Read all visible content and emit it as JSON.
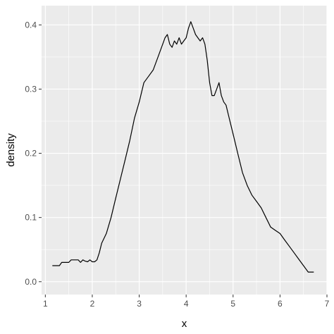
{
  "chart_data": {
    "type": "line",
    "title": "",
    "xlabel": "x",
    "ylabel": "density",
    "xlim": [
      0.92,
      7.0
    ],
    "ylim": [
      -0.02,
      0.43
    ],
    "x_ticks": [
      1,
      2,
      3,
      4,
      5,
      6,
      7
    ],
    "y_ticks": [
      0.0,
      0.1,
      0.2,
      0.3,
      0.4
    ],
    "y_tick_labels": [
      "0.0",
      "0.1",
      "0.2",
      "0.3",
      "0.4"
    ],
    "grid": true,
    "colors": {
      "panel": "#EBEBEB",
      "grid": "#FFFFFF",
      "line": "#000000"
    },
    "series": [
      {
        "x": [
          1.15,
          1.3,
          1.35,
          1.5,
          1.55,
          1.7,
          1.75,
          1.8,
          1.85,
          1.9,
          1.95,
          2.0,
          2.05,
          2.1,
          2.15,
          2.2,
          2.3,
          2.4,
          2.5,
          2.6,
          2.7,
          2.8,
          2.9,
          3.0,
          3.1,
          3.2,
          3.3,
          3.4,
          3.5,
          3.55,
          3.6,
          3.65,
          3.7,
          3.75,
          3.8,
          3.85,
          3.9,
          3.95,
          4.0,
          4.05,
          4.1,
          4.15,
          4.2,
          4.25,
          4.3,
          4.35,
          4.4,
          4.45,
          4.5,
          4.55,
          4.6,
          4.65,
          4.7,
          4.75,
          4.8,
          4.85,
          4.9,
          5.0,
          5.1,
          5.2,
          5.3,
          5.4,
          5.5,
          5.6,
          5.7,
          5.8,
          5.9,
          6.0,
          6.1,
          6.2,
          6.3,
          6.4,
          6.5,
          6.6,
          6.72
        ],
        "y": [
          0.025,
          0.025,
          0.03,
          0.03,
          0.034,
          0.034,
          0.03,
          0.034,
          0.032,
          0.031,
          0.034,
          0.031,
          0.031,
          0.034,
          0.045,
          0.06,
          0.075,
          0.1,
          0.13,
          0.16,
          0.19,
          0.22,
          0.255,
          0.28,
          0.31,
          0.32,
          0.33,
          0.35,
          0.37,
          0.38,
          0.385,
          0.37,
          0.365,
          0.375,
          0.37,
          0.38,
          0.37,
          0.375,
          0.38,
          0.395,
          0.405,
          0.395,
          0.385,
          0.38,
          0.375,
          0.38,
          0.37,
          0.345,
          0.31,
          0.29,
          0.29,
          0.3,
          0.31,
          0.29,
          0.28,
          0.275,
          0.26,
          0.23,
          0.2,
          0.17,
          0.15,
          0.135,
          0.125,
          0.115,
          0.1,
          0.085,
          0.08,
          0.075,
          0.065,
          0.055,
          0.045,
          0.035,
          0.025,
          0.015,
          0.015
        ]
      }
    ]
  }
}
